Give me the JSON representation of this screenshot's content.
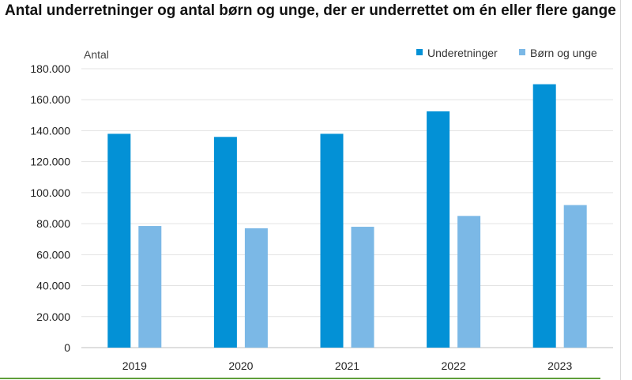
{
  "chart_data": {
    "type": "bar",
    "title": "Antal underretninger og antal børn og unge, der er underrettet om én eller flere gange",
    "ylabel": "Antal",
    "xlabel": "",
    "categories": [
      "2019",
      "2020",
      "2021",
      "2022",
      "2023"
    ],
    "series": [
      {
        "name": "Underetninger",
        "color": "#0391d6",
        "values": [
          138000,
          136000,
          138000,
          152500,
          170000
        ]
      },
      {
        "name": "Børn og unge",
        "color": "#7bb8e6",
        "values": [
          78500,
          77000,
          78000,
          85000,
          92000
        ]
      }
    ],
    "ylim": [
      0,
      180000
    ],
    "yticks": [
      0,
      20000,
      40000,
      60000,
      80000,
      100000,
      120000,
      140000,
      160000,
      180000
    ],
    "ytick_labels": [
      "0",
      "20.000",
      "40.000",
      "60.000",
      "80.000",
      "100.000",
      "120.000",
      "140.000",
      "160.000",
      "180.000"
    ],
    "grid": true,
    "legend_position": "top-right"
  }
}
